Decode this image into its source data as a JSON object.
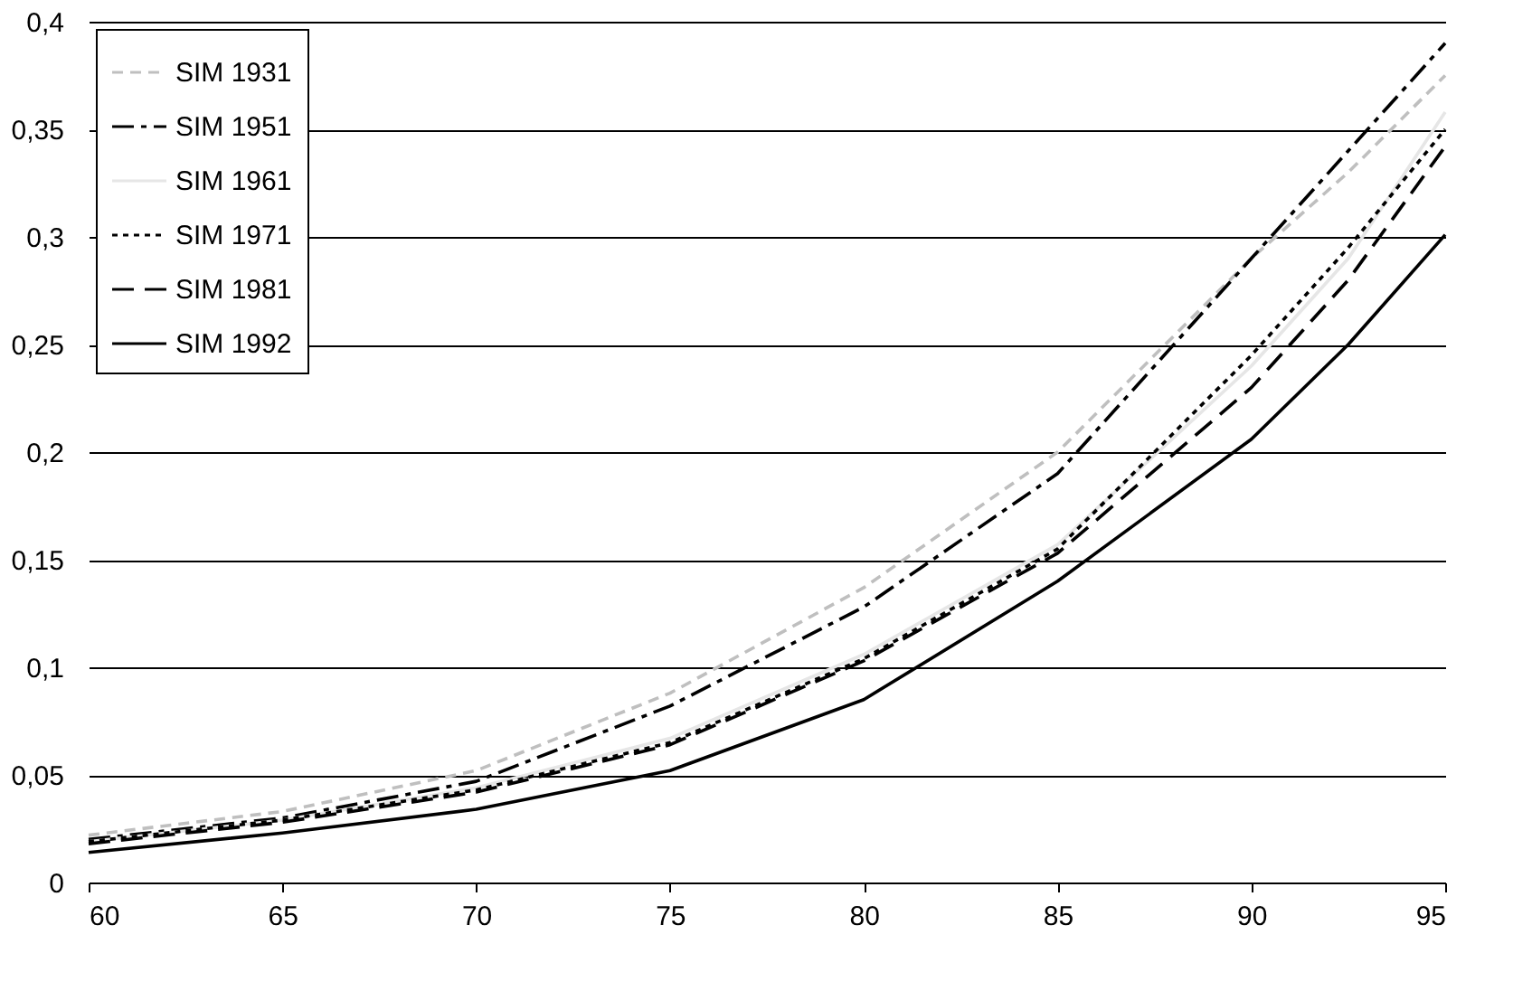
{
  "chart_data": {
    "type": "line",
    "x": [
      60,
      65,
      70,
      75,
      80,
      85,
      90,
      92.5,
      95
    ],
    "series": [
      {
        "name": "SIM 1931",
        "color": "#bfbfbf",
        "line_style": "dashed",
        "values": [
          0.022,
          0.033,
          0.052,
          0.088,
          0.137,
          0.2,
          0.29,
          0.33,
          0.375
        ]
      },
      {
        "name": "SIM 1951",
        "color": "#000000",
        "line_style": "dashdot",
        "values": [
          0.02,
          0.03,
          0.047,
          0.082,
          0.128,
          0.19,
          0.29,
          0.34,
          0.39
        ]
      },
      {
        "name": "SIM 1961",
        "color": "#e6e6e6",
        "line_style": "solid",
        "values": [
          0.019,
          0.029,
          0.044,
          0.067,
          0.106,
          0.157,
          0.24,
          0.29,
          0.358
        ]
      },
      {
        "name": "SIM 1971",
        "color": "#000000",
        "line_style": "dotted",
        "values": [
          0.019,
          0.029,
          0.043,
          0.065,
          0.104,
          0.155,
          0.245,
          0.295,
          0.35
        ]
      },
      {
        "name": "SIM 1981",
        "color": "#000000",
        "line_style": "longdash",
        "values": [
          0.018,
          0.028,
          0.042,
          0.064,
          0.103,
          0.153,
          0.23,
          0.28,
          0.342
        ]
      },
      {
        "name": "SIM 1992",
        "color": "#000000",
        "line_style": "solid",
        "values": [
          0.014,
          0.023,
          0.034,
          0.052,
          0.085,
          0.14,
          0.206,
          0.25,
          0.301
        ]
      }
    ],
    "xlim": [
      60,
      95
    ],
    "xticks": [
      60,
      65,
      70,
      75,
      80,
      85,
      90,
      95
    ],
    "ylim": [
      0,
      0.4
    ],
    "yticks": [
      0,
      {
        "value": 0.05,
        "label": "0,05"
      },
      {
        "value": 0.1,
        "label": "0,1"
      },
      {
        "value": 0.15,
        "label": "0,15"
      },
      {
        "value": 0.2,
        "label": "0,2"
      },
      {
        "value": 0.25,
        "label": "0,25"
      },
      {
        "value": 0.3,
        "label": "0,3"
      },
      {
        "value": 0.35,
        "label": "0,35"
      },
      {
        "value": 0.4,
        "label": "0,4"
      }
    ],
    "grid": "y",
    "legend": "top left"
  }
}
